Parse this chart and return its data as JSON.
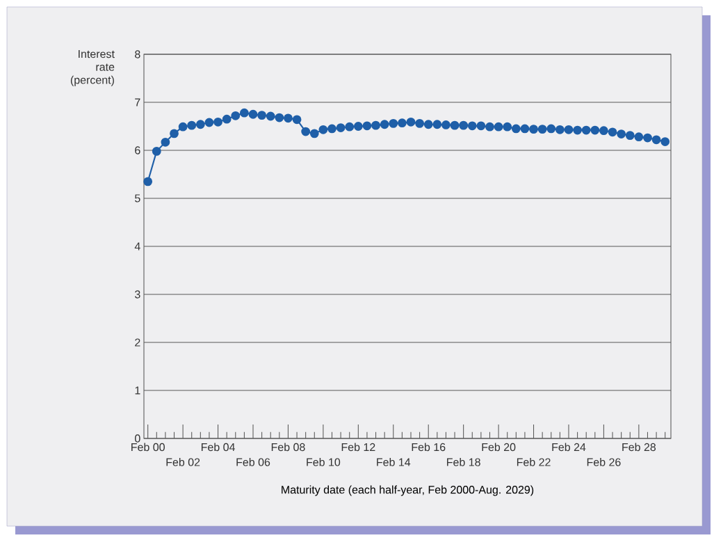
{
  "chart_data": {
    "type": "line",
    "xlabel": "Maturity date (each half-year, Feb 2000-Aug. 2029)",
    "ylabel": "Interest rate (percent)",
    "categories": [
      "Feb 00",
      null,
      null,
      null,
      "Feb 02",
      null,
      null,
      null,
      "Feb 04",
      null,
      null,
      null,
      "Feb 06",
      null,
      null,
      null,
      "Feb 08",
      null,
      null,
      null,
      "Feb 10",
      null,
      null,
      null,
      "Feb 12",
      null,
      null,
      null,
      "Feb 14",
      null,
      null,
      null,
      "Feb 16",
      null,
      null,
      null,
      "Feb 18",
      null,
      null,
      null,
      "Feb 20",
      null,
      null,
      null,
      "Feb 22",
      null,
      null,
      null,
      "Feb 24",
      null,
      null,
      null,
      "Feb 26",
      null,
      null,
      null,
      "Feb 28",
      null,
      null,
      null
    ],
    "values": [
      5.35,
      5.98,
      6.17,
      6.35,
      6.49,
      6.52,
      6.54,
      6.58,
      6.59,
      6.65,
      6.72,
      6.78,
      6.75,
      6.73,
      6.71,
      6.68,
      6.67,
      6.64,
      6.39,
      6.35,
      6.43,
      6.45,
      6.47,
      6.49,
      6.5,
      6.51,
      6.52,
      6.54,
      6.56,
      6.57,
      6.59,
      6.56,
      6.54,
      6.54,
      6.53,
      6.52,
      6.52,
      6.51,
      6.51,
      6.49,
      6.49,
      6.49,
      6.45,
      6.45,
      6.44,
      6.44,
      6.45,
      6.43,
      6.43,
      6.42,
      6.42,
      6.42,
      6.41,
      6.38,
      6.34,
      6.31,
      6.28,
      6.26,
      6.22,
      6.18
    ],
    "color": "#1f5fa8",
    "marker": "circle",
    "line_style": "solid",
    "grid": "y",
    "ylim": [
      0,
      8
    ],
    "yticks": [
      0,
      1,
      2,
      3,
      4,
      5,
      6,
      7,
      8
    ]
  }
}
